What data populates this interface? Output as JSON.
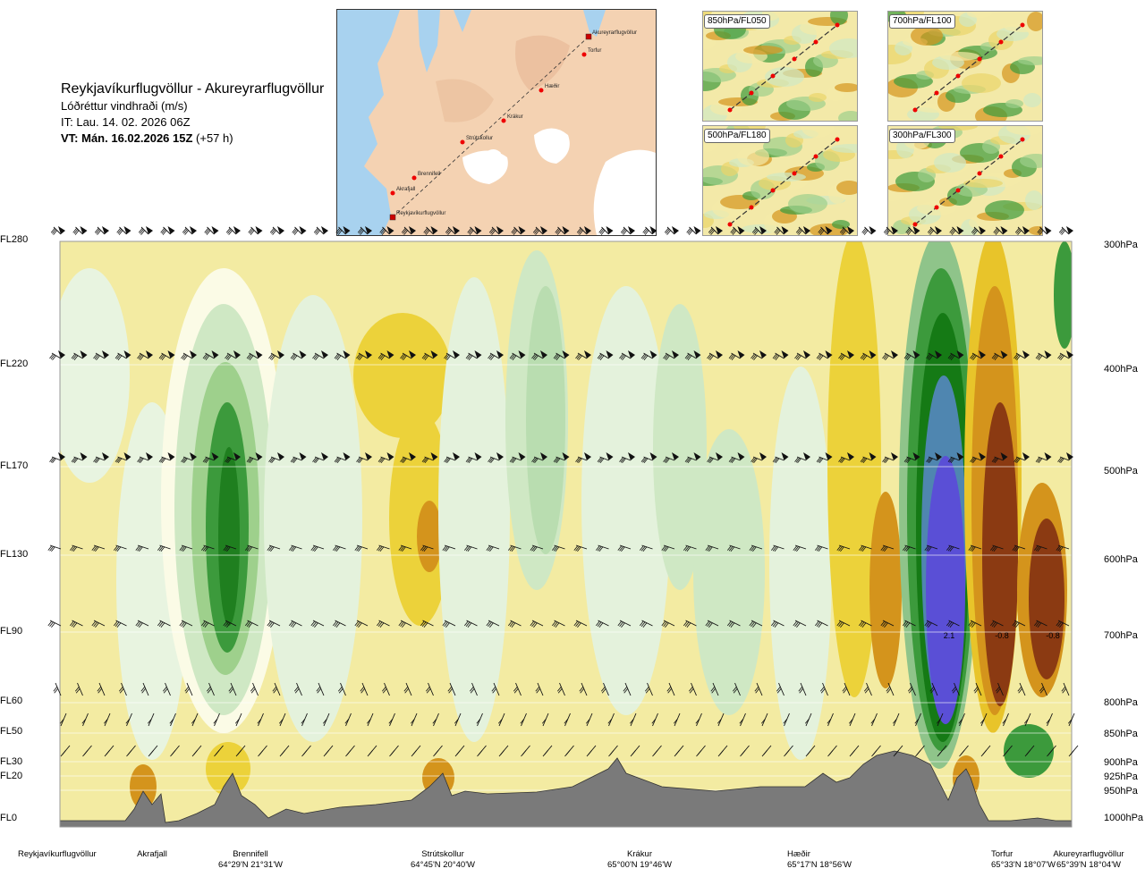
{
  "header": {
    "route": "Reykjavíkurflugvöllur - Akureyrarflugvöllur",
    "quantity": "Lóðréttur vindhraði (m/s)",
    "issue_time": "IT: Lau. 14. 02. 2026 06Z",
    "valid_prefix": "VT: Mán. 16.02.2026 15Z",
    "valid_suffix": " (+57 h)"
  },
  "map": {
    "places": [
      "Akureyrarflugvöllur",
      "Torfur",
      "Hæðir",
      "Krákur",
      "Strútskollur",
      "Brennifell",
      "Akrafjall",
      "Reykjavíkurflugvöllur"
    ]
  },
  "thumbnails": [
    "850hPa/FL050",
    "700hPa/FL100",
    "500hPa/FL180",
    "300hPa/FL300"
  ],
  "colors": {
    "strong_down": "#8b3a12",
    "down": "#d4941c",
    "weak_down": "#e8c42a",
    "neutral": "#f5eea8",
    "weak_up": "#cfe8c4",
    "up": "#3c9a3c",
    "strong_up": "#5a4fd6",
    "terrain": "#7a7a7a"
  },
  "chart_data": {
    "type": "heatmap",
    "title": "Lóðréttur vindhraði (m/s)",
    "y_left_ticks": [
      "FL280",
      "FL220",
      "FL170",
      "FL130",
      "FL90",
      "FL60",
      "FL50",
      "FL30",
      "FL20",
      "FL0"
    ],
    "y_right_ticks": [
      "300hPa",
      "400hPa",
      "500hPa",
      "600hPa",
      "700hPa",
      "800hPa",
      "850hPa",
      "900hPa",
      "925hPa",
      "950hPa",
      "1000hPa"
    ],
    "x_points": [
      {
        "name": "Reykjavíkurflugvöllur",
        "coord": ""
      },
      {
        "name": "Akrafjall",
        "coord": ""
      },
      {
        "name": "Brennifell",
        "coord": "64°29'N 21°31'W"
      },
      {
        "name": "Strútskollur",
        "coord": "64°45'N 20°40'W"
      },
      {
        "name": "Krákur",
        "coord": "65°00'N 19°46'W"
      },
      {
        "name": "Hæðir",
        "coord": "65°17'N 18°56'W"
      },
      {
        "name": "Torfur",
        "coord": "65°33'N 18°07'W"
      },
      {
        "name": "Akureyrarflugvöllur",
        "coord": "65°39'N 18°04'W"
      }
    ],
    "value_labels": [
      "2.1",
      "-0.8",
      "-0.8"
    ],
    "grid": true
  }
}
